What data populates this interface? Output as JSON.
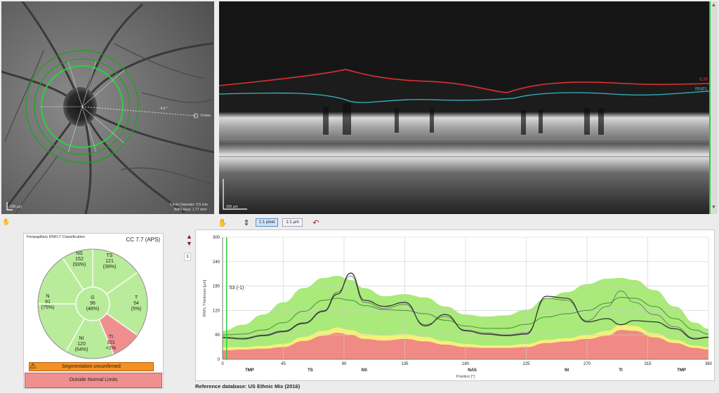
{
  "fundus": {
    "scale_label": "200 µm",
    "angle_label": "-4.5 °",
    "fovea_label": "Fovea",
    "circle_info": "Circle Diameter: 3.5 mm",
    "bmo_info": "BMO Area: 1.77 mm²"
  },
  "oct": {
    "scale_label": "200 µm",
    "ilm_label": "ILM",
    "rnfl_label": "RNFL"
  },
  "toolbar": {
    "btn_1to1_pixel": "1:1 pixel",
    "btn_1to1_um": "1:1 µm"
  },
  "classification": {
    "title": "Peripapillary RNFLT Classification",
    "cc_label": "CC 7.7 (APS)",
    "sectors": [
      {
        "id": "NS",
        "value": "152",
        "pct": "(93%)"
      },
      {
        "id": "TS",
        "value": "121",
        "pct": "(39%)"
      },
      {
        "id": "N",
        "value": "91",
        "pct": "(75%)"
      },
      {
        "id": "G",
        "value": "96",
        "pct": "(48%)"
      },
      {
        "id": "T",
        "value": "54",
        "pct": "(5%)"
      },
      {
        "id": "NI",
        "value": "120",
        "pct": "(64%)"
      },
      {
        "id": "TI",
        "value": "101",
        "pct": "<1%"
      }
    ],
    "segmentation_label": "Segmentation unconfirmed",
    "status_label": "Outside Normal Limits",
    "colors": {
      "normal": "#b9ec9a",
      "outside": "#f08f8f",
      "border": "#f39122"
    }
  },
  "side_panel": {
    "page": "1"
  },
  "reference_db": "Reference database: US Ethnic Mix (2016)",
  "chart_data": {
    "type": "line",
    "ylabel": "RNFL Thickness [µm]",
    "xlabel": "Position [°]",
    "ylim": [
      0,
      300
    ],
    "xlim": [
      0,
      360
    ],
    "y_ticks": [
      0,
      60,
      120,
      180,
      240,
      300
    ],
    "x_ticks": [
      0,
      45,
      90,
      135,
      180,
      225,
      270,
      315,
      360
    ],
    "sector_labels": [
      {
        "x": 20,
        "label": "TMP"
      },
      {
        "x": 65,
        "label": "TS"
      },
      {
        "x": 105,
        "label": "NS"
      },
      {
        "x": 185,
        "label": "NAS"
      },
      {
        "x": 255,
        "label": "NI"
      },
      {
        "x": 295,
        "label": "TI"
      },
      {
        "x": 340,
        "label": "TMP"
      }
    ],
    "marker_label": "53 (-1)",
    "marker_x": 3,
    "x": [
      0,
      15,
      30,
      45,
      60,
      75,
      85,
      95,
      105,
      120,
      135,
      150,
      165,
      180,
      195,
      210,
      225,
      240,
      255,
      270,
      285,
      295,
      305,
      320,
      335,
      350,
      360
    ],
    "series": [
      {
        "name": "measured",
        "values": [
          53,
          50,
          58,
          68,
          88,
          118,
          160,
          212,
          145,
          130,
          140,
          82,
          110,
          70,
          62,
          58,
          62,
          155,
          150,
          92,
          100,
          85,
          95,
          92,
          75,
          50,
          54
        ]
      },
      {
        "name": "prior",
        "values": [
          55,
          52,
          60,
          70,
          90,
          120,
          165,
          205,
          140,
          125,
          135,
          85,
          105,
          72,
          65,
          60,
          65,
          150,
          145,
          95,
          130,
          168,
          140,
          110,
          80,
          52,
          55
        ]
      },
      {
        "name": "mean",
        "values": [
          60,
          62,
          72,
          90,
          118,
          145,
          150,
          145,
          132,
          122,
          120,
          112,
          96,
          82,
          76,
          76,
          86,
          104,
          112,
          120,
          138,
          152,
          150,
          130,
          100,
          72,
          62
        ]
      }
    ],
    "band_upper": [
      70,
      85,
      110,
      140,
      175,
      200,
      205,
      195,
      175,
      155,
      160,
      152,
      130,
      110,
      105,
      108,
      122,
      150,
      165,
      185,
      198,
      200,
      195,
      170,
      130,
      90,
      75
    ],
    "band_lower": [
      30,
      30,
      33,
      38,
      55,
      70,
      78,
      72,
      62,
      58,
      62,
      55,
      45,
      38,
      34,
      34,
      38,
      48,
      52,
      60,
      70,
      85,
      82,
      64,
      48,
      34,
      30
    ],
    "band_low5": [
      22,
      24,
      26,
      30,
      45,
      58,
      65,
      60,
      50,
      46,
      50,
      44,
      36,
      30,
      28,
      28,
      30,
      40,
      44,
      50,
      58,
      72,
      70,
      54,
      40,
      28,
      24
    ],
    "colors": {
      "green": "#a9ea7a",
      "yellow": "#f6ef7c",
      "red": "#f08a84",
      "mean": "#4a8f3a",
      "line": "#333333"
    }
  }
}
